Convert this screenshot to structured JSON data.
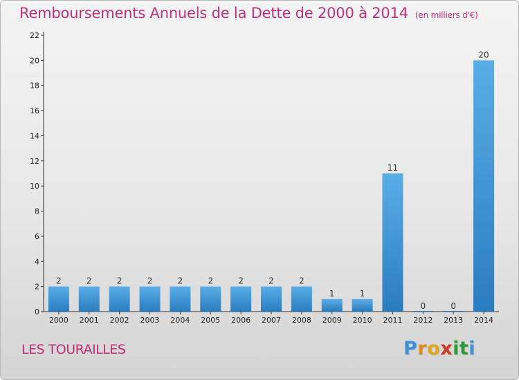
{
  "header": {
    "title": "Remboursements Annuels de la Dette de 2000 à 2014",
    "subtitle": "(en milliers d'€)"
  },
  "footer": {
    "commune": "LES TOURAILLES",
    "logo_letters": [
      "P",
      "r",
      "o",
      "x",
      "i",
      "t",
      "i"
    ],
    "logo_colors": [
      "#3f8fd6",
      "#e08a1e",
      "#e0a81e",
      "#d23a2a",
      "#2f9a3a",
      "#2f9a3a",
      "#3f8fd6"
    ]
  },
  "colors": {
    "bar_light": "#5aaee6",
    "bar_dark": "#2a7cc0",
    "accent": "#c0307a"
  },
  "chart_data": {
    "type": "bar",
    "title": "Remboursements Annuels de la Dette de 2000 à 2014",
    "subtitle": "(en milliers d'€)",
    "xlabel": "",
    "ylabel": "",
    "categories": [
      "2000",
      "2001",
      "2002",
      "2003",
      "2004",
      "2005",
      "2006",
      "2007",
      "2008",
      "2009",
      "2010",
      "2011",
      "2012",
      "2013",
      "2014"
    ],
    "values": [
      2,
      2,
      2,
      2,
      2,
      2,
      2,
      2,
      2,
      1,
      1,
      11,
      0,
      0,
      20
    ],
    "data_labels": [
      "2",
      "2",
      "2",
      "2",
      "2",
      "2",
      "2",
      "2",
      "2",
      "1",
      "1",
      "11",
      "0",
      "0",
      "20"
    ],
    "ylim": [
      0,
      22
    ],
    "yticks": [
      0,
      2,
      4,
      6,
      8,
      10,
      12,
      14,
      16,
      18,
      20,
      22
    ],
    "grid": false,
    "legend": "none"
  }
}
